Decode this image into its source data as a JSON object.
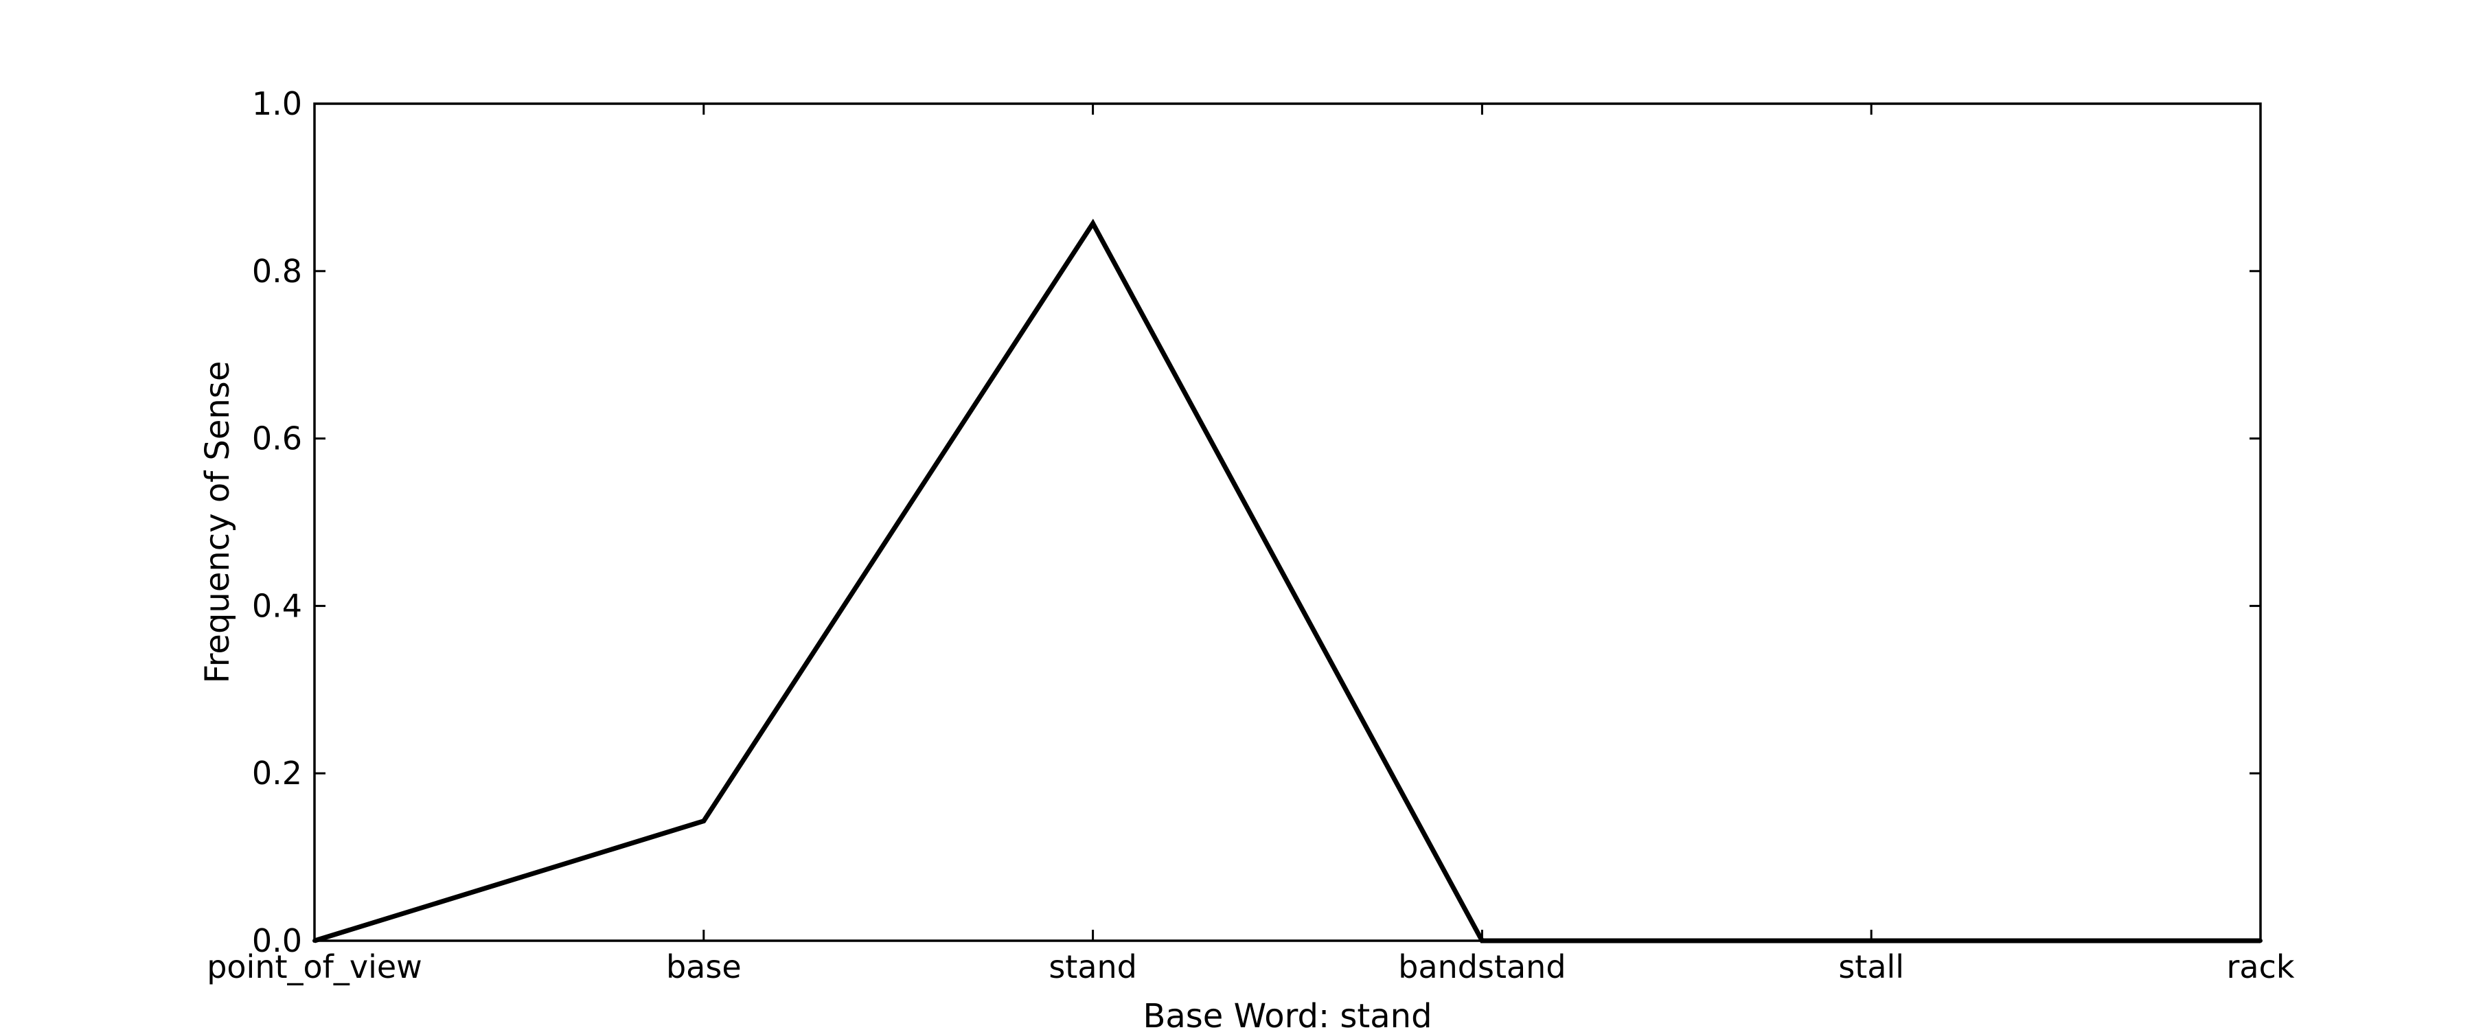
{
  "chart_data": {
    "type": "line",
    "categories": [
      "point_of_view",
      "base",
      "stand",
      "bandstand",
      "stall",
      "rack"
    ],
    "values": [
      0.0,
      0.143,
      0.857,
      0.0,
      0.0,
      0.0
    ],
    "xlabel": "Base Word: stand",
    "ylabel": "Frequency of Sense",
    "ylim": [
      0,
      1.0
    ],
    "yticks": [
      "0.0",
      "0.2",
      "0.4",
      "0.6",
      "0.8",
      "1.0"
    ],
    "grid": false,
    "line_color": "#000000"
  }
}
